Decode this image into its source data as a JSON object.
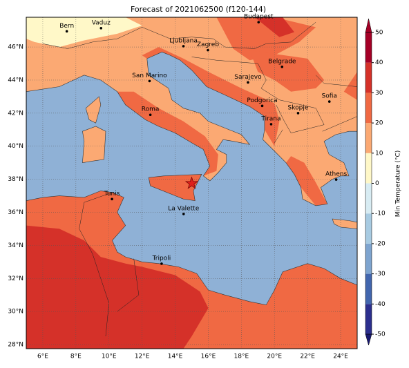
{
  "title": "Forecast of 2021062500 (f120-144)",
  "map": {
    "xlim": [
      5,
      25
    ],
    "ylim": [
      27.75,
      47.8
    ],
    "lon_ticks": [
      {
        "value": 6,
        "label": "6°E"
      },
      {
        "value": 8,
        "label": "8°E"
      },
      {
        "value": 10,
        "label": "10°E"
      },
      {
        "value": 12,
        "label": "12°E"
      },
      {
        "value": 14,
        "label": "14°E"
      },
      {
        "value": 16,
        "label": "16°E"
      },
      {
        "value": 18,
        "label": "18°E"
      },
      {
        "value": 20,
        "label": "20°E"
      },
      {
        "value": 22,
        "label": "22°E"
      },
      {
        "value": 24,
        "label": "24°E"
      }
    ],
    "lat_ticks": [
      {
        "value": 28,
        "label": "28°N"
      },
      {
        "value": 30,
        "label": "30°N"
      },
      {
        "value": 32,
        "label": "32°N"
      },
      {
        "value": 34,
        "label": "34°N"
      },
      {
        "value": 36,
        "label": "36°N"
      },
      {
        "value": 38,
        "label": "38°N"
      },
      {
        "value": 40,
        "label": "40°N"
      },
      {
        "value": 42,
        "label": "42°N"
      },
      {
        "value": 44,
        "label": "44°N"
      },
      {
        "value": 46,
        "label": "46°N"
      }
    ],
    "cities": [
      "Bern",
      "Vaduz",
      "Budapest",
      "Ljubljana",
      "Zagreb",
      "Belgrade",
      "San Marino",
      "Sarajevo",
      "Sofia",
      "Podgorica",
      "Skopje",
      "Roma",
      "Tirana",
      "Athens",
      "Tunis",
      "La Valette",
      "Tripoli"
    ]
  },
  "colorbar": {
    "label": "Min Temperature (°C)",
    "ticks": [
      -50,
      -40,
      -30,
      -20,
      -10,
      0,
      10,
      20,
      30,
      40,
      50
    ],
    "colors": [
      "#2c2f8e",
      "#4266ae",
      "#7ea4cf",
      "#a8cbe2",
      "#d8ecf3",
      "#fff8c8",
      "#fba973",
      "#f06943",
      "#d53129",
      "#a50026"
    ]
  }
}
